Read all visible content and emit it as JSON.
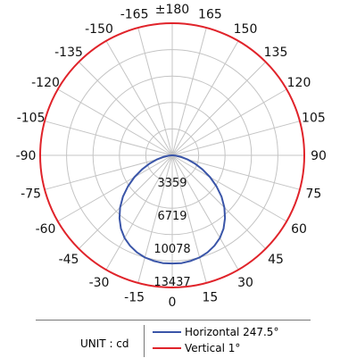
{
  "chart_data": {
    "type": "polar",
    "angle_labels": [
      "±180",
      "165",
      "150",
      "135",
      "120",
      "105",
      "90",
      "75",
      "60",
      "45",
      "30",
      "15",
      "0",
      "-15",
      "-30",
      "-45",
      "-60",
      "-75",
      "-90",
      "-105",
      "-120",
      "-135",
      "-150",
      "-165"
    ],
    "radial_ticks": [
      3359,
      6719,
      10078,
      13437
    ],
    "r_max": 13437,
    "series": [
      {
        "name": "Horizontal 247.5°",
        "color": "#3a55a8",
        "angles": [
          0,
          5,
          10,
          15,
          20,
          25,
          30,
          35,
          40,
          45,
          50,
          55,
          60,
          65,
          70,
          75,
          80,
          85,
          90,
          95,
          100,
          110,
          120,
          135,
          150,
          165,
          180
        ],
        "values": [
          11000,
          11000,
          10900,
          10750,
          10500,
          10150,
          9700,
          9100,
          8350,
          7500,
          6550,
          5500,
          4450,
          3400,
          2450,
          1600,
          900,
          380,
          80,
          0,
          0,
          0,
          0,
          0,
          0,
          0,
          0
        ],
        "symmetric": true
      },
      {
        "name": "Vertical 1°",
        "color": "#e0232a",
        "angles": [
          0,
          180
        ],
        "values": [
          13437,
          13437
        ],
        "constant": true
      }
    ],
    "unit_label": "UNIT : cd",
    "grid": true
  }
}
